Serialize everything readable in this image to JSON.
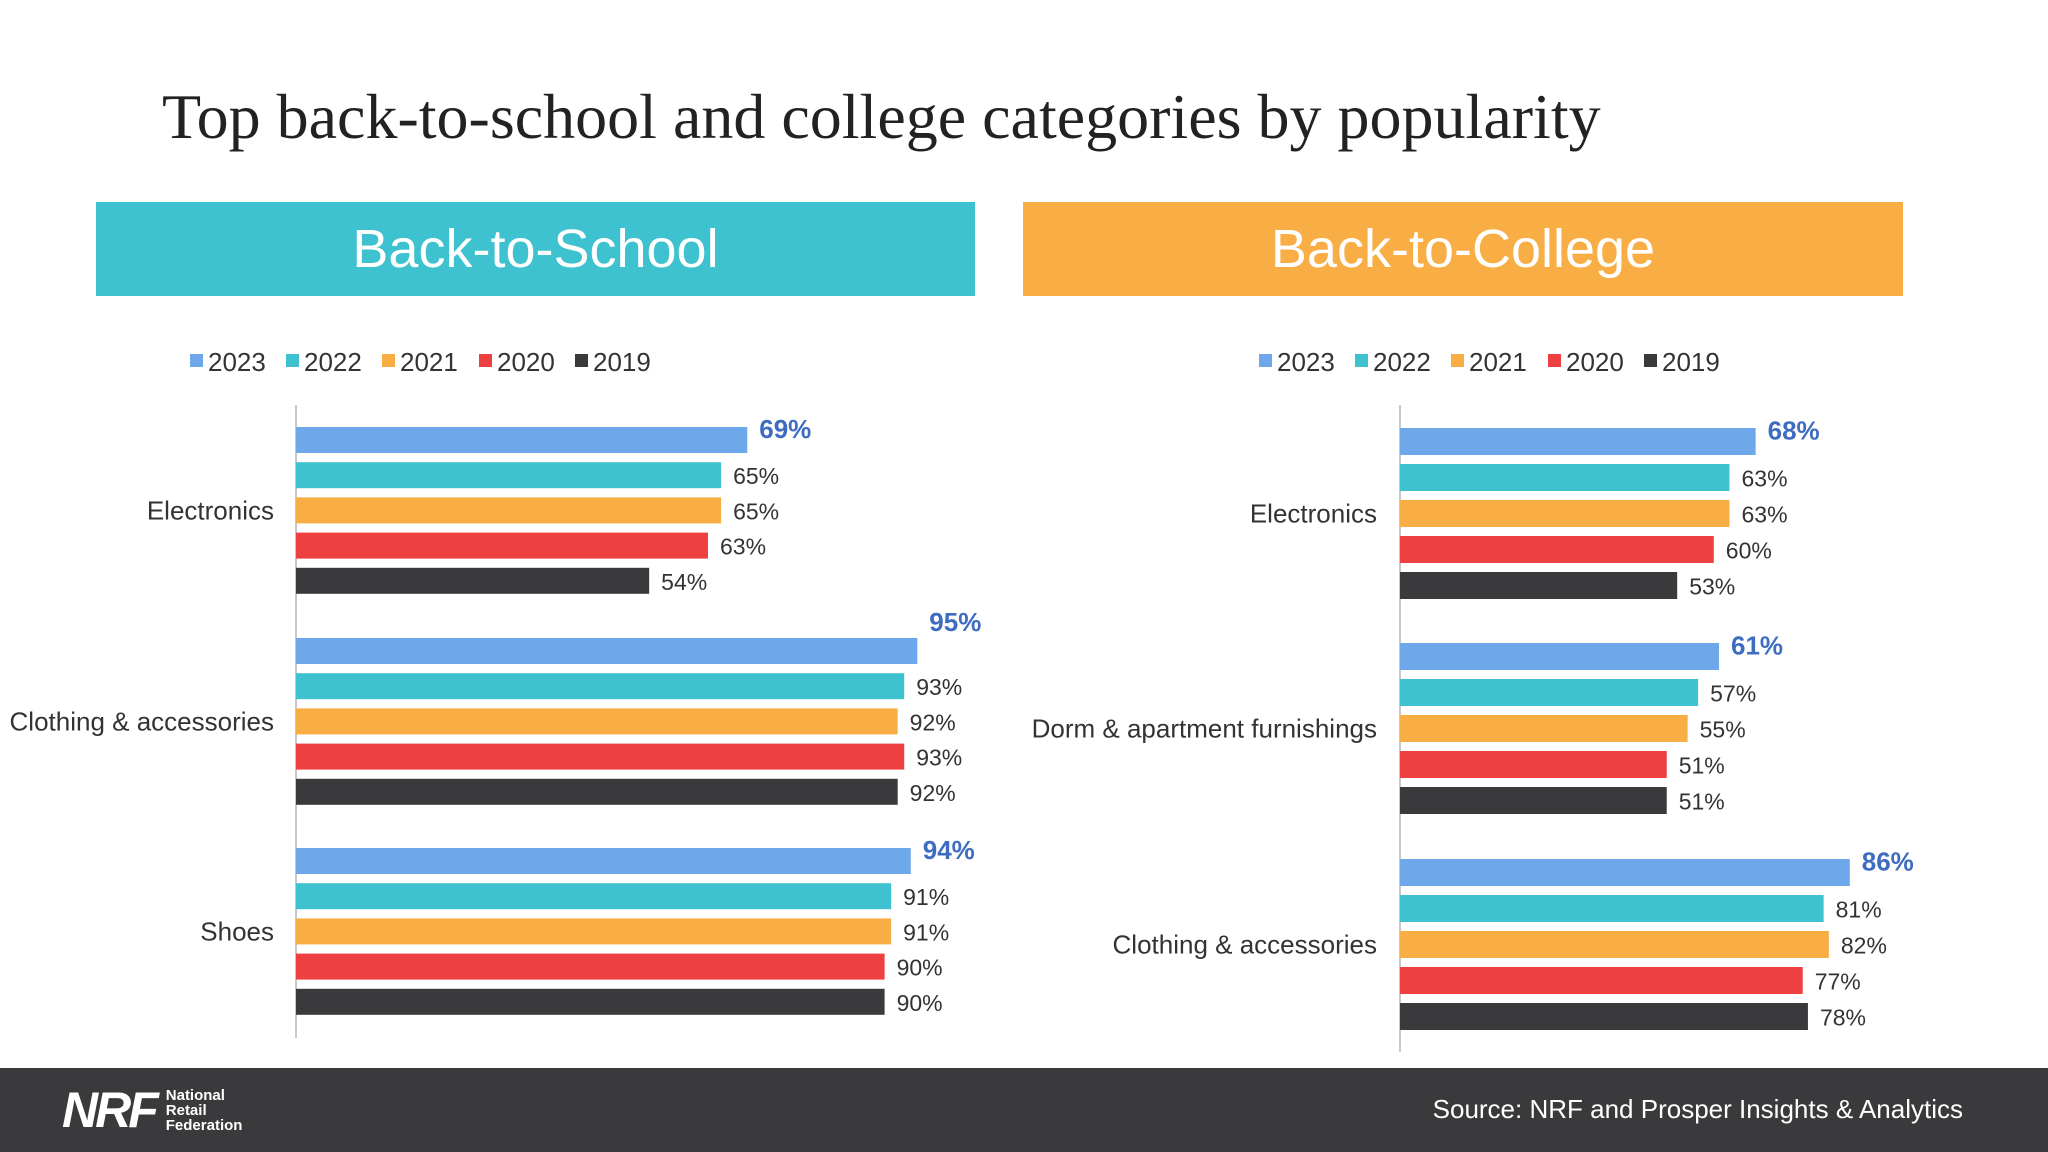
{
  "slide": {
    "title": "Top back-to-school and college categories by popularity",
    "source": "Source: NRF and Prosper Insights & Analytics"
  },
  "logo": {
    "letters": "NRF",
    "lines": [
      "National",
      "Retail",
      "Federation"
    ]
  },
  "colors": {
    "school_header": "#3EC2CF",
    "college_header": "#F8AE45",
    "footer": "#3A3A3D",
    "highlight_label": "#3D6CC0",
    "label": "#333333",
    "axis": "#C8C8C8"
  },
  "chart_data": [
    {
      "type": "bar",
      "orientation": "horizontal",
      "panel_title": "Back-to-School",
      "categories": [
        "Electronics",
        "Clothing & accessories",
        "Shoes"
      ],
      "series": [
        {
          "name": "2023",
          "color": "#6FA8EA",
          "values": [
            69,
            95,
            94
          ]
        },
        {
          "name": "2022",
          "color": "#3EC2CF",
          "values": [
            65,
            93,
            91
          ]
        },
        {
          "name": "2021",
          "color": "#F8AE45",
          "values": [
            65,
            92,
            91
          ]
        },
        {
          "name": "2020",
          "color": "#EE4040",
          "values": [
            63,
            93,
            90
          ]
        },
        {
          "name": "2019",
          "color": "#3A3A3D",
          "values": [
            54,
            92,
            90
          ]
        }
      ],
      "value_suffix": "%",
      "xlim": [
        0,
        100
      ],
      "grid": false,
      "legend_position": "top-left"
    },
    {
      "type": "bar",
      "orientation": "horizontal",
      "panel_title": "Back-to-College",
      "categories": [
        "Electronics",
        "Dorm & apartment furnishings",
        "Clothing & accessories"
      ],
      "series": [
        {
          "name": "2023",
          "color": "#6FA8EA",
          "values": [
            68,
            61,
            86
          ]
        },
        {
          "name": "2022",
          "color": "#3EC2CF",
          "values": [
            63,
            57,
            81
          ]
        },
        {
          "name": "2021",
          "color": "#F8AE45",
          "values": [
            63,
            55,
            82
          ]
        },
        {
          "name": "2020",
          "color": "#EE4040",
          "values": [
            60,
            51,
            77
          ]
        },
        {
          "name": "2019",
          "color": "#3A3A3D",
          "values": [
            53,
            51,
            78
          ]
        }
      ],
      "value_suffix": "%",
      "xlim": [
        0,
        100
      ],
      "grid": false,
      "legend_position": "top-center"
    }
  ]
}
